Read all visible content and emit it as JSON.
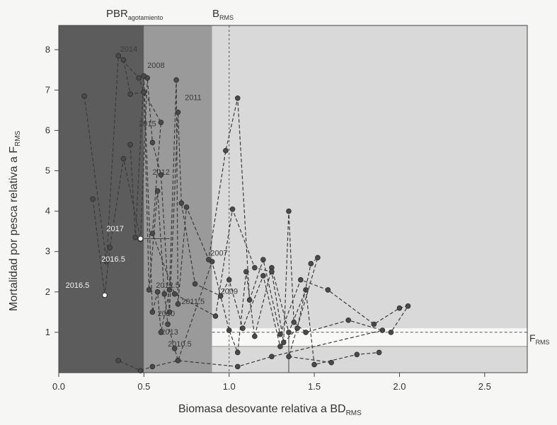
{
  "chart_data": {
    "type": "scatter",
    "title": "",
    "xlabel": "Biomasa desovante relativa a BD",
    "xlabel_sub": "RMS",
    "ylabel": "Mortalidad por pesca relativa a F",
    "ylabel_sub": "RMS",
    "xlim": [
      0.0,
      2.75
    ],
    "ylim": [
      0.0,
      8.6
    ],
    "x_ticks": [
      "0.0",
      "0.5",
      "1.0",
      "1.5",
      "2.0",
      "2.5"
    ],
    "y_ticks": [
      "1",
      "2",
      "3",
      "4",
      "5",
      "6",
      "7",
      "8"
    ],
    "zones": [
      {
        "from": 0.0,
        "to": 0.5,
        "color": "#5c5c5c"
      },
      {
        "from": 0.5,
        "to": 0.9,
        "color": "#9a9a9a"
      },
      {
        "from": 0.9,
        "to": 2.75,
        "color": "#d9d9d9"
      }
    ],
    "reference_lines": {
      "pbr_label": "PBR",
      "pbr_sub": "agotamiento",
      "pbr_x": 0.5,
      "brms_label": "B",
      "brms_sub": "RMS",
      "brms_x": 1.0,
      "frms_label": "F",
      "frms_sub": "RMS",
      "frms_y": 1.0
    },
    "band": {
      "x_from": 0.9,
      "y_from": 0.65,
      "y_to": 1.1,
      "color": "#f8f8f6"
    },
    "series": [
      {
        "points": [
          [
            0.15,
            6.85
          ],
          [
            0.28,
            2.75
          ],
          [
            0.35,
            7.85
          ],
          [
            0.47,
            7.3
          ],
          [
            0.5,
            6.95
          ],
          [
            0.53,
            2.05
          ],
          [
            0.58,
            4.5
          ],
          [
            0.62,
            1.95
          ],
          [
            0.64,
            1.2
          ],
          [
            0.68,
            0.6
          ],
          [
            0.7,
            0.3
          ],
          [
            0.9,
            2.75
          ],
          [
            1.0,
            1.05
          ],
          [
            1.05,
            0.5
          ],
          [
            1.1,
            2.5
          ],
          [
            1.15,
            0.9
          ],
          [
            1.25,
            2.6
          ],
          [
            1.35,
            1.0
          ],
          [
            1.45,
            2.05
          ],
          [
            1.5,
            0.2
          ],
          [
            1.75,
            0.45
          ],
          [
            1.88,
            0.5
          ]
        ]
      },
      {
        "points": [
          [
            0.2,
            4.3
          ],
          [
            0.27,
            1.92
          ],
          [
            0.3,
            3.1
          ],
          [
            0.38,
            5.3
          ],
          [
            0.48,
            3.3
          ],
          [
            0.52,
            7.3
          ],
          [
            0.55,
            5.7
          ],
          [
            0.6,
            4.9
          ],
          [
            0.65,
            1.5
          ],
          [
            0.7,
            6.45
          ],
          [
            0.72,
            4.2
          ],
          [
            0.8,
            2.2
          ],
          [
            0.95,
            1.9
          ],
          [
            1.0,
            2.3
          ],
          [
            1.08,
            1.1
          ],
          [
            1.2,
            2.4
          ],
          [
            1.3,
            0.65
          ],
          [
            1.4,
            1.1
          ],
          [
            1.48,
            2.7
          ],
          [
            1.52,
            2.85
          ],
          [
            1.35,
            0.4
          ],
          [
            1.6,
            0.25
          ]
        ]
      },
      {
        "points": [
          [
            0.42,
            5.65
          ],
          [
            0.45,
            3.35
          ],
          [
            0.5,
            7.35
          ],
          [
            0.55,
            1.5
          ],
          [
            0.58,
            2.0
          ],
          [
            0.6,
            1.0
          ],
          [
            0.65,
            2.05
          ],
          [
            0.69,
            7.25
          ],
          [
            0.7,
            1.7
          ],
          [
            0.75,
            4.1
          ],
          [
            0.88,
            2.8
          ],
          [
            0.98,
            5.5
          ],
          [
            1.05,
            6.8
          ],
          [
            1.12,
            1.8
          ],
          [
            1.2,
            2.8
          ],
          [
            1.3,
            0.95
          ],
          [
            1.42,
            2.3
          ],
          [
            1.58,
            2.05
          ],
          [
            1.85,
            1.2
          ],
          [
            2.0,
            1.6
          ],
          [
            2.05,
            1.65
          ],
          [
            1.95,
            1.0
          ]
        ]
      },
      {
        "points": [
          [
            0.38,
            7.75
          ],
          [
            0.42,
            6.9
          ],
          [
            0.5,
            6.95
          ],
          [
            0.6,
            6.2
          ],
          [
            0.55,
            3.45
          ],
          [
            0.68,
            1.95
          ],
          [
            0.92,
            1.4
          ],
          [
            1.02,
            4.05
          ],
          [
            1.15,
            2.6
          ],
          [
            1.25,
            2.5
          ],
          [
            1.32,
            0.75
          ],
          [
            1.35,
            4.0
          ],
          [
            1.38,
            1.25
          ],
          [
            1.45,
            1.0
          ],
          [
            1.7,
            1.3
          ],
          [
            1.9,
            1.05
          ],
          [
            1.25,
            0.4
          ],
          [
            1.05,
            0.15
          ],
          [
            0.7,
            0.3
          ],
          [
            0.55,
            0.15
          ],
          [
            0.48,
            0.05
          ],
          [
            0.35,
            0.3
          ]
        ]
      }
    ],
    "white_points": [
      [
        0.27,
        1.92
      ],
      [
        0.48,
        3.32
      ]
    ],
    "point_labels": [
      {
        "text": "2014",
        "x": 0.36,
        "y": 7.95,
        "color": "#3a3a3a"
      },
      {
        "text": "2008",
        "x": 0.52,
        "y": 7.55,
        "color": "#3a3a3a"
      },
      {
        "text": "2011",
        "x": 0.74,
        "y": 6.75,
        "color": "#3a3a3a"
      },
      {
        "text": "2015",
        "x": 0.47,
        "y": 6.1,
        "color": "#3a3a3a"
      },
      {
        "text": "2012",
        "x": 0.55,
        "y": 4.9,
        "color": "#3a3a3a"
      },
      {
        "text": "2017",
        "x": 0.28,
        "y": 3.5,
        "color": "#f4f4f4"
      },
      {
        "text": "2016.5",
        "x": 0.25,
        "y": 2.75,
        "color": "#f4f4f4"
      },
      {
        "text": "2016.5",
        "x": 0.04,
        "y": 2.1,
        "color": "#f4f4f4"
      },
      {
        "text": "2007",
        "x": 0.89,
        "y": 2.9,
        "color": "#3a3a3a"
      },
      {
        "text": "2012.5",
        "x": 0.57,
        "y": 2.1,
        "color": "#3a3a3a"
      },
      {
        "text": "2009",
        "x": 0.95,
        "y": 1.95,
        "color": "#3a3a3a"
      },
      {
        "text": "2011.5",
        "x": 0.72,
        "y": 1.7,
        "color": "#3a3a3a"
      },
      {
        "text": "2010",
        "x": 0.58,
        "y": 1.4,
        "color": "#3a3a3a"
      },
      {
        "text": "2013",
        "x": 0.6,
        "y": 0.95,
        "color": "#3a3a3a"
      },
      {
        "text": "2010.5",
        "x": 0.64,
        "y": 0.65,
        "color": "#3a3a3a"
      }
    ]
  }
}
